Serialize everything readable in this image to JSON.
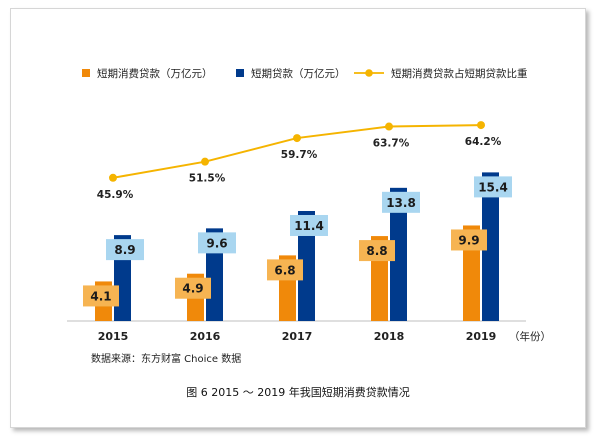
{
  "chart_data": {
    "type": "bar",
    "categories": [
      "2015",
      "2016",
      "2017",
      "2018",
      "2019"
    ],
    "series": [
      {
        "name": "短期消费贷款（万亿元）",
        "kind": "bar",
        "color": "#f0890a",
        "label_bg": "#f6b452",
        "values": [
          4.1,
          4.9,
          6.8,
          8.8,
          9.9
        ]
      },
      {
        "name": "短期贷款（万亿元）",
        "kind": "bar",
        "color": "#003a8c",
        "label_bg": "#a9d6f0",
        "values": [
          8.9,
          9.6,
          11.4,
          13.8,
          15.4
        ]
      },
      {
        "name": "短期消费贷款占短期贷款比重",
        "kind": "line",
        "color": "#f5b400",
        "values": [
          45.9,
          51.5,
          59.7,
          63.7,
          64.2
        ],
        "labels": [
          "45.9%",
          "51.5%",
          "59.7%",
          "63.7%",
          "64.2%"
        ]
      }
    ],
    "xunit": "（年份）",
    "grid": false,
    "legend": "top"
  },
  "source_note": "数据来源：东方财富 Choice 数据",
  "caption": "图 6  2015 ～ 2019 年我国短期消费贷款情况"
}
